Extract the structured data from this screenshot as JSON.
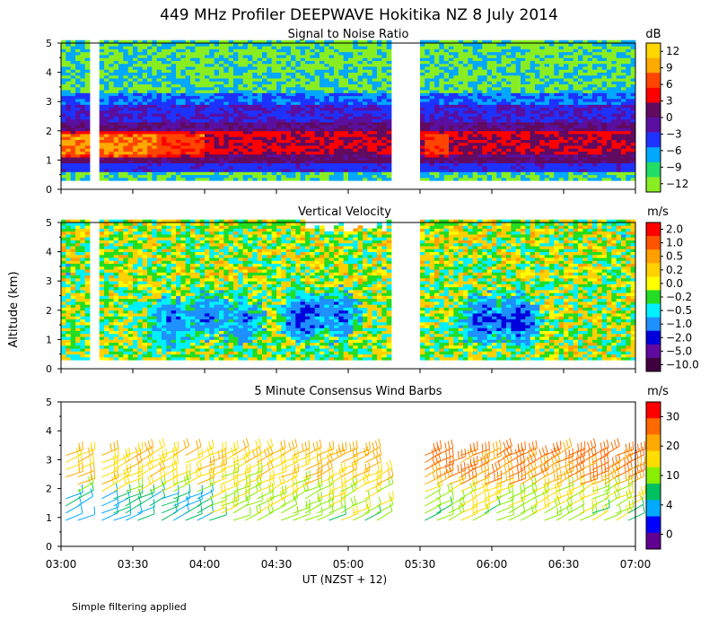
{
  "title": "449 MHz Profiler DEEPWAVE Hokitika NZ  8 July 2014",
  "ylabel": "Altitude (km)",
  "xlabel": "UT  (NZST + 12)",
  "footnote": "Simple filtering applied",
  "x_ticks": [
    "03:00",
    "03:30",
    "04:00",
    "04:30",
    "05:00",
    "05:30",
    "06:00",
    "06:30",
    "07:00"
  ],
  "y_ticks": [
    "0",
    "1",
    "2",
    "3",
    "4",
    "5"
  ],
  "chart_data": [
    {
      "type": "heatmap",
      "title": "Signal to Noise Ratio",
      "unit": "dB",
      "x_range": [
        "03:00",
        "07:00"
      ],
      "ylim": [
        0,
        5
      ],
      "data_gaps": [
        [
          "03:12",
          "03:16"
        ],
        [
          "05:17",
          "05:30"
        ]
      ],
      "colorbar": {
        "labels": [
          "12",
          "9",
          "6",
          "3",
          "0",
          "−3",
          "−6",
          "−9",
          "−12"
        ],
        "colors": [
          "#ffd700",
          "#ffaa00",
          "#ff4500",
          "#ff0000",
          "#600a60",
          "#5a0fa0",
          "#1e32ff",
          "#00a8ff",
          "#22dd66",
          "#88ee22"
        ]
      },
      "layers": [
        {
          "from_km": 0.3,
          "to_km": 0.6,
          "snr_db": -9
        },
        {
          "from_km": 0.6,
          "to_km": 0.8,
          "snr_db": -4
        },
        {
          "from_km": 0.8,
          "to_km": 1.1,
          "snr_db": 1
        },
        {
          "from_km": 1.1,
          "to_km": 2.0,
          "snr_db": 4
        },
        {
          "from_km": 2.0,
          "to_km": 2.3,
          "snr_db": 0
        },
        {
          "from_km": 2.3,
          "to_km": 2.9,
          "snr_db": -3
        },
        {
          "from_km": 2.9,
          "to_km": 3.3,
          "snr_db": -6
        },
        {
          "from_km": 3.3,
          "to_km": 5.0,
          "snr_db": -9
        }
      ]
    },
    {
      "type": "heatmap",
      "title": "Vertical Velocity",
      "unit": "m/s",
      "x_range": [
        "03:00",
        "07:00"
      ],
      "ylim": [
        0,
        5
      ],
      "data_gaps": [
        [
          "03:12",
          "03:16"
        ],
        [
          "05:17",
          "05:30"
        ]
      ],
      "colorbar": {
        "labels": [
          "2.0",
          "1.0",
          "0.5",
          "0.2",
          "0.0",
          "−0.2",
          "−0.5",
          "−1.0",
          "−2.0",
          "−5.0",
          "−10.0"
        ],
        "colors": [
          "#ff0000",
          "#ff5500",
          "#ffa000",
          "#ffd000",
          "#ffff00",
          "#22dd22",
          "#00f0ff",
          "#1e90ff",
          "#0000dd",
          "#600aa0",
          "#400040"
        ]
      }
    },
    {
      "type": "wind-barbs",
      "title": "5 Minute Consensus Wind Barbs",
      "unit": "m/s",
      "x_range": [
        "03:00",
        "07:00"
      ],
      "ylim": [
        0,
        5
      ],
      "altitude_range_km": [
        0.9,
        3.2
      ],
      "colorbar": {
        "labels": [
          "30",
          "20",
          "10",
          "4",
          "0"
        ],
        "colors": [
          "#ff0000",
          "#ff6a00",
          "#ffaa00",
          "#ffdd00",
          "#88ee00",
          "#00c060",
          "#00aaff",
          "#0000ff",
          "#600090"
        ]
      }
    }
  ]
}
